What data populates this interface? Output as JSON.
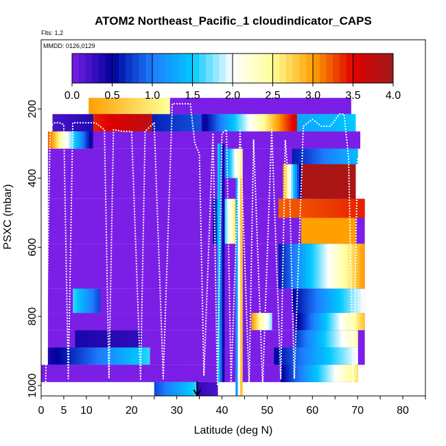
{
  "chart_data": {
    "type": "heatmap",
    "title": "ATOM2 Northeast_Pacific_1 cloudindicator_CAPS",
    "flights_note": "Flts: 1,2",
    "dates_note": "MMDD: 0126,0129",
    "xlabel": "Latitude (deg N)",
    "ylabel": "PSXC (mbar)",
    "xlim": [
      0,
      85
    ],
    "ylim": [
      1000,
      0
    ],
    "x_ticks": [
      0,
      5,
      10,
      20,
      30,
      40,
      50,
      60,
      70,
      80
    ],
    "x_tick_labels": [
      "0",
      "5",
      "10",
      "20",
      "30",
      "40",
      "50",
      "60",
      "70",
      "80"
    ],
    "y_ticks": [
      200,
      400,
      600,
      800,
      1000
    ],
    "y_tick_labels": [
      "200",
      "400",
      "600",
      "800",
      "1000"
    ],
    "colorbar": {
      "min": 0.0,
      "max": 4.0,
      "ticks": [
        0.0,
        0.5,
        1.0,
        1.5,
        2.0,
        2.5,
        3.0,
        3.5,
        4.0
      ],
      "tick_labels": [
        "0.0",
        "0.5",
        "1.0",
        "1.5",
        "2.0",
        "2.5",
        "3.0",
        "3.5",
        "4.0"
      ],
      "stops": [
        "#7b1fe6",
        "#00009c",
        "#1d7cff",
        "#00c8ff",
        "#ffffff",
        "#ffff99",
        "#ffa000",
        "#e00000",
        "#9e1a1a"
      ]
    },
    "marker_latitude": 34.5,
    "cells": [
      {
        "lat0": 10.5,
        "lat1": 28.5,
        "p0": 168,
        "p1": 215,
        "v0": 3.0,
        "v1": 2.5
      },
      {
        "lat0": 28.5,
        "lat1": 68.5,
        "p0": 168,
        "p1": 215,
        "v0": 0.0,
        "v1": 0.0
      },
      {
        "lat0": 2.5,
        "lat1": 69.5,
        "p0": 215,
        "p1": 265,
        "v0": 0.2,
        "v1": 1.5
      },
      {
        "lat0": 11.5,
        "lat1": 24.5,
        "p0": 215,
        "p1": 265,
        "v0": 3.4,
        "v1": 3.8
      },
      {
        "lat0": 35.5,
        "lat1": 56.5,
        "p0": 215,
        "p1": 265,
        "v0": 0.4,
        "v1": 3.6
      },
      {
        "lat0": 1.5,
        "lat1": 11.5,
        "p0": 265,
        "p1": 315,
        "v0": 3.2,
        "v1": 0.4
      },
      {
        "lat0": 11.5,
        "lat1": 70.5,
        "p0": 265,
        "p1": 315,
        "v0": 0.0,
        "v1": 0.0
      },
      {
        "lat0": 1.5,
        "lat1": 69.5,
        "p0": 315,
        "p1": 460,
        "v0": 0.0,
        "v1": 0.0
      },
      {
        "lat0": 55.5,
        "lat1": 70.0,
        "p0": 315,
        "p1": 360,
        "v0": 0.6,
        "v1": 1.4
      },
      {
        "lat0": 57.5,
        "lat1": 69.5,
        "p0": 360,
        "p1": 460,
        "v0": 3.9,
        "v1": 3.9
      },
      {
        "lat0": 40.5,
        "lat1": 44.5,
        "p0": 315,
        "p1": 400,
        "v0": 1.0,
        "v1": 2.6
      },
      {
        "lat0": 53.5,
        "lat1": 57.5,
        "p0": 360,
        "p1": 460,
        "v0": 3.0,
        "v1": 0.5
      },
      {
        "lat0": 1.5,
        "lat1": 71.5,
        "p0": 460,
        "p1": 590,
        "v0": 0.0,
        "v1": 0.0
      },
      {
        "lat0": 52.5,
        "lat1": 71.5,
        "p0": 460,
        "p1": 515,
        "v0": 3.2,
        "v1": 3.4
      },
      {
        "lat0": 57.5,
        "lat1": 69.5,
        "p0": 515,
        "p1": 590,
        "v0": 3.0,
        "v1": 3.0
      },
      {
        "lat0": 38.0,
        "lat1": 43.5,
        "p0": 460,
        "p1": 720,
        "v0": 0.5,
        "v1": 2.8
      },
      {
        "lat0": 1.5,
        "lat1": 71.5,
        "p0": 590,
        "p1": 720,
        "v0": 0.0,
        "v1": 0.0
      },
      {
        "lat0": 52.5,
        "lat1": 71.5,
        "p0": 590,
        "p1": 720,
        "v0": 0.6,
        "v1": 3.0
      },
      {
        "lat0": 1.5,
        "lat1": 71.5,
        "p0": 720,
        "p1": 790,
        "v0": 0.0,
        "v1": 0.0
      },
      {
        "lat0": 7.0,
        "lat1": 13.0,
        "p0": 720,
        "p1": 790,
        "v0": 1.6,
        "v1": 0.8
      },
      {
        "lat0": 55.5,
        "lat1": 71.5,
        "p0": 720,
        "p1": 790,
        "v0": 0.5,
        "v1": 2.0
      },
      {
        "lat0": 1.5,
        "lat1": 71.5,
        "p0": 790,
        "p1": 840,
        "v0": 0.0,
        "v1": 0.0
      },
      {
        "lat0": 46.5,
        "lat1": 51.0,
        "p0": 790,
        "p1": 840,
        "v0": 3.0,
        "v1": 1.8
      },
      {
        "lat0": 56.0,
        "lat1": 71.5,
        "p0": 790,
        "p1": 840,
        "v0": 0.4,
        "v1": 2.8
      },
      {
        "lat0": 1.5,
        "lat1": 71.5,
        "p0": 840,
        "p1": 890,
        "v0": 0.0,
        "v1": 0.0
      },
      {
        "lat0": 7.5,
        "lat1": 22.0,
        "p0": 840,
        "p1": 890,
        "v0": 0.4,
        "v1": 0.3
      },
      {
        "lat0": 56.0,
        "lat1": 70.0,
        "p0": 840,
        "p1": 890,
        "v0": 0.7,
        "v1": 2.4
      },
      {
        "lat0": 1.5,
        "lat1": 71.5,
        "p0": 890,
        "p1": 940,
        "v0": 0.0,
        "v1": 0.0
      },
      {
        "lat0": 1.5,
        "lat1": 24.0,
        "p0": 890,
        "p1": 940,
        "v0": 0.4,
        "v1": 1.6
      },
      {
        "lat0": 51.5,
        "lat1": 70.0,
        "p0": 890,
        "p1": 940,
        "v0": 0.5,
        "v1": 2.0
      },
      {
        "lat0": 0.0,
        "lat1": 70.0,
        "p0": 940,
        "p1": 990,
        "v0": 0.0,
        "v1": 0.0
      },
      {
        "lat0": 53.0,
        "lat1": 70.0,
        "p0": 940,
        "p1": 990,
        "v0": 0.5,
        "v1": 2.6
      },
      {
        "lat0": 25.0,
        "lat1": 34.5,
        "p0": 990,
        "p1": 1030,
        "v0": 0.8,
        "v1": 1.6
      },
      {
        "lat0": 34.5,
        "lat1": 39.0,
        "p0": 990,
        "p1": 1030,
        "v0": 0.3,
        "v1": 0.2
      },
      {
        "lat0": 43.0,
        "lat1": 44.5,
        "p0": 400,
        "p1": 1030,
        "v0": 1.2,
        "v1": 2.8
      },
      {
        "lat0": 39.0,
        "lat1": 40.5,
        "p0": 300,
        "p1": 990,
        "v0": 1.5,
        "v1": 0.4
      }
    ],
    "flight_track_lat": [
      1,
      2,
      3,
      4,
      5,
      6,
      7,
      8,
      10,
      12,
      14,
      15,
      16,
      18,
      20,
      22,
      23,
      25,
      27,
      29,
      31,
      33,
      34,
      35,
      36,
      38,
      39,
      40,
      41,
      42,
      44,
      46,
      47,
      49,
      51,
      53,
      54,
      55,
      56,
      58,
      60,
      62,
      64,
      66,
      67,
      68,
      69,
      70
    ],
    "flight_track_p": [
      990,
      250,
      240,
      240,
      245,
      980,
      240,
      240,
      240,
      240,
      260,
      980,
      260,
      265,
      265,
      985,
      265,
      240,
      980,
      185,
      185,
      185,
      300,
      330,
      970,
      270,
      1000,
      270,
      260,
      990,
      260,
      1000,
      290,
      1000,
      260,
      980,
      290,
      460,
      980,
      250,
      230,
      250,
      250,
      215,
      215,
      340,
      1000,
      340
    ]
  }
}
